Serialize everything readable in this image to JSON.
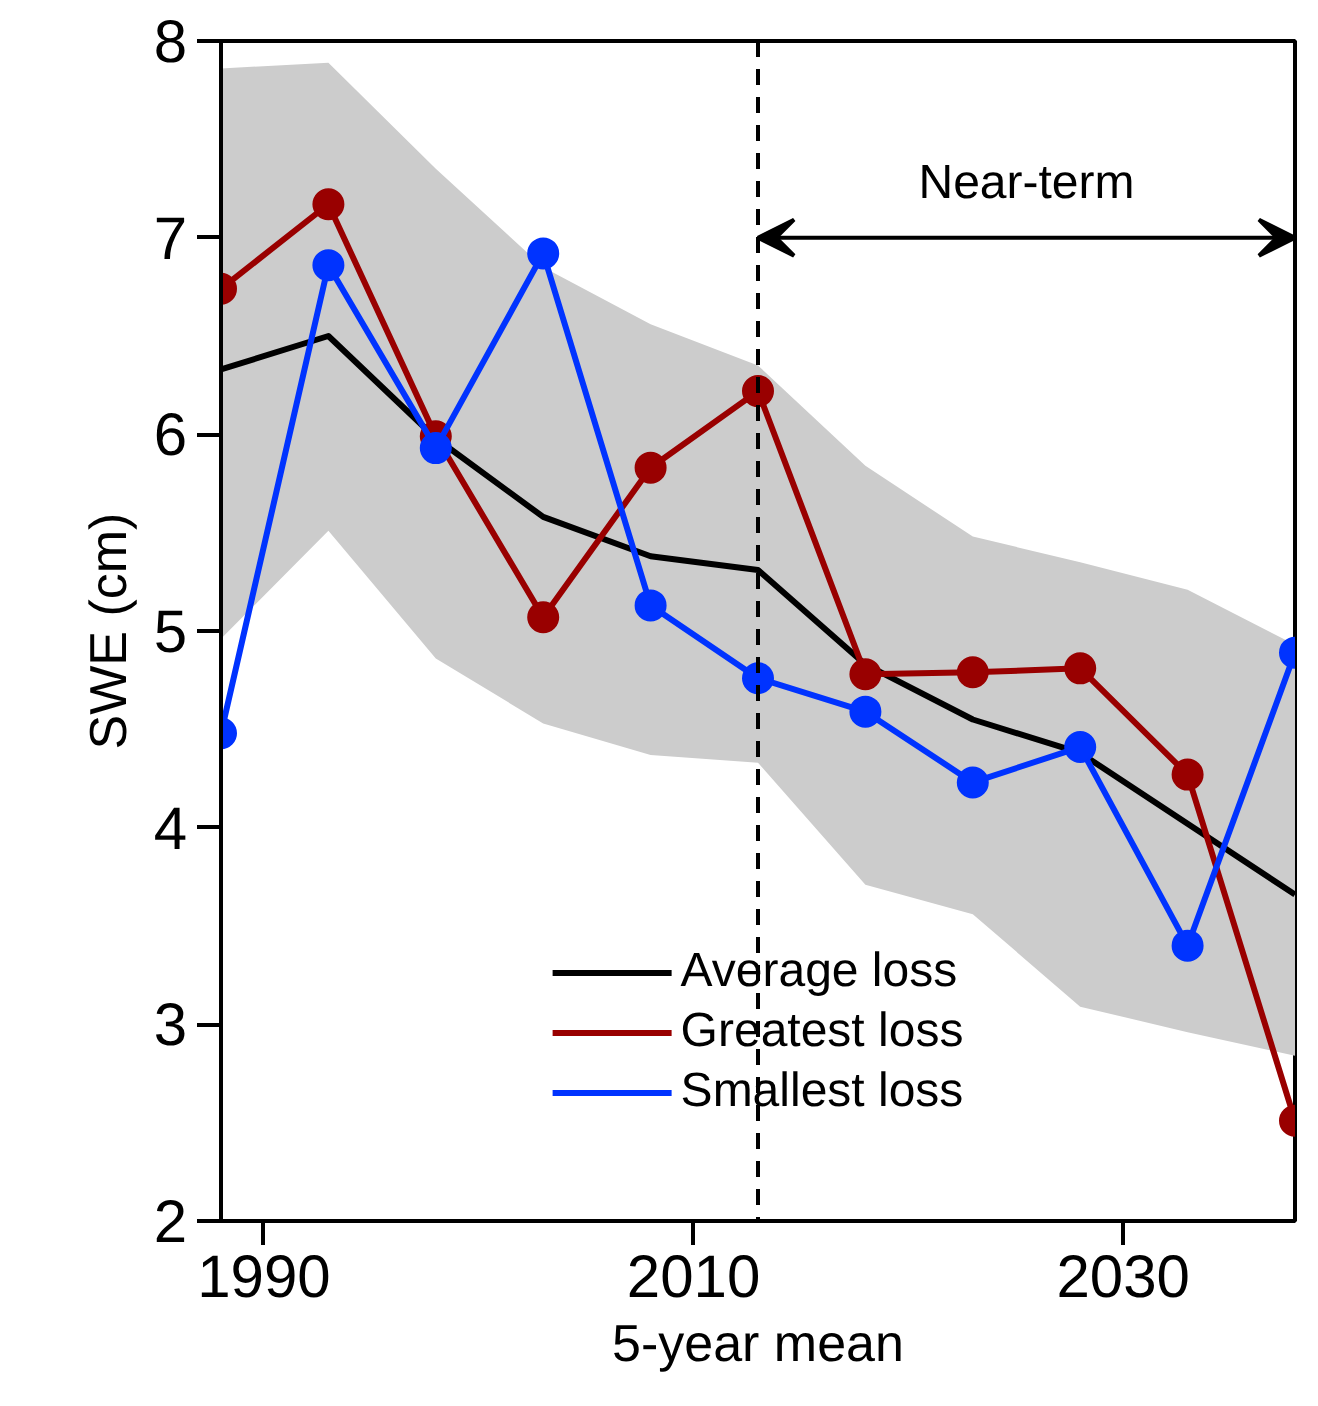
{
  "chart_data": {
    "type": "line",
    "xlabel": "5-year mean",
    "ylabel": "SWE (cm)",
    "x": [
      1988,
      1993,
      1998,
      2003,
      2008,
      2013,
      2018,
      2023,
      2028,
      2033,
      2038
    ],
    "xlim": [
      1988,
      2038
    ],
    "xticks": [
      1990,
      2010,
      2030
    ],
    "ylim": [
      2,
      8
    ],
    "yticks": [
      2,
      3,
      4,
      5,
      6,
      7,
      8
    ],
    "series": [
      {
        "name": "Average loss",
        "color": "#000000",
        "marker": "none",
        "values": [
          6.33,
          6.5,
          5.98,
          5.58,
          5.38,
          5.31,
          4.83,
          4.55,
          4.38,
          4.02,
          3.66
        ],
        "lower": [
          4.96,
          5.51,
          4.86,
          4.53,
          4.37,
          4.33,
          3.71,
          3.56,
          3.09,
          2.96,
          2.84
        ],
        "upper": [
          7.86,
          7.89,
          7.35,
          6.85,
          6.56,
          6.35,
          5.84,
          5.48,
          5.35,
          5.21,
          4.93
        ]
      },
      {
        "name": "Greatest loss",
        "color": "#990000",
        "marker": "circle",
        "values": [
          6.74,
          7.17,
          5.99,
          5.07,
          5.83,
          6.22,
          4.78,
          4.79,
          4.81,
          4.27,
          2.51
        ]
      },
      {
        "name": "Smallest loss",
        "color": "#0033ff",
        "marker": "circle",
        "values": [
          4.48,
          6.86,
          5.93,
          6.92,
          5.13,
          4.76,
          4.59,
          4.23,
          4.41,
          3.4,
          4.89
        ]
      }
    ],
    "ref_lines": [
      {
        "axis": "x",
        "value": 2013,
        "line_style": "dashed",
        "color": "#000000"
      }
    ],
    "annotations": [
      "Near-term"
    ],
    "grid": false,
    "legend": "bottom",
    "line_style": "solid"
  }
}
